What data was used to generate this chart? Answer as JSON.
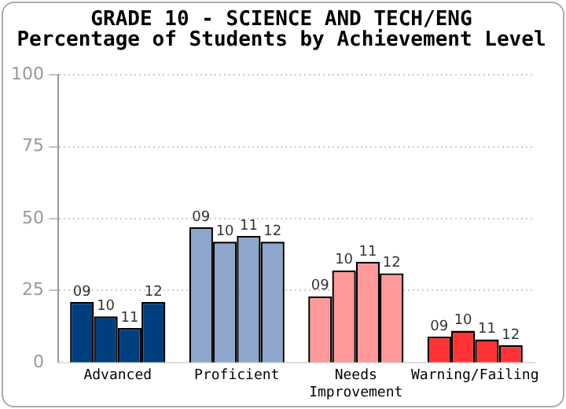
{
  "chart_data": {
    "type": "bar",
    "title": "GRADE 10 - SCIENCE AND TECH/ENG",
    "subtitle": "Percentage of Students by Achievement Level",
    "categories": [
      "Advanced",
      "Proficient",
      "Needs Improvement",
      "Warning/Failing"
    ],
    "series": [
      {
        "name": "09",
        "colors": [
          "#003f7f",
          "#8ea6cc",
          "#ff9999",
          "#ff3333"
        ],
        "values": [
          21,
          47,
          23,
          9
        ]
      },
      {
        "name": "10",
        "colors": [
          "#003f7f",
          "#8ea6cc",
          "#ff9999",
          "#ff3333"
        ],
        "values": [
          16,
          42,
          32,
          11
        ]
      },
      {
        "name": "11",
        "colors": [
          "#003f7f",
          "#8ea6cc",
          "#ff9999",
          "#ff3333"
        ],
        "values": [
          12,
          44,
          35,
          8
        ]
      },
      {
        "name": "12",
        "colors": [
          "#003f7f",
          "#8ea6cc",
          "#ff9999",
          "#ff3333"
        ],
        "values": [
          21,
          42,
          31,
          6
        ]
      }
    ],
    "ylim": [
      0,
      100
    ],
    "yticks": [
      0,
      25,
      50,
      75,
      100
    ],
    "grid": "y",
    "legend": false
  }
}
